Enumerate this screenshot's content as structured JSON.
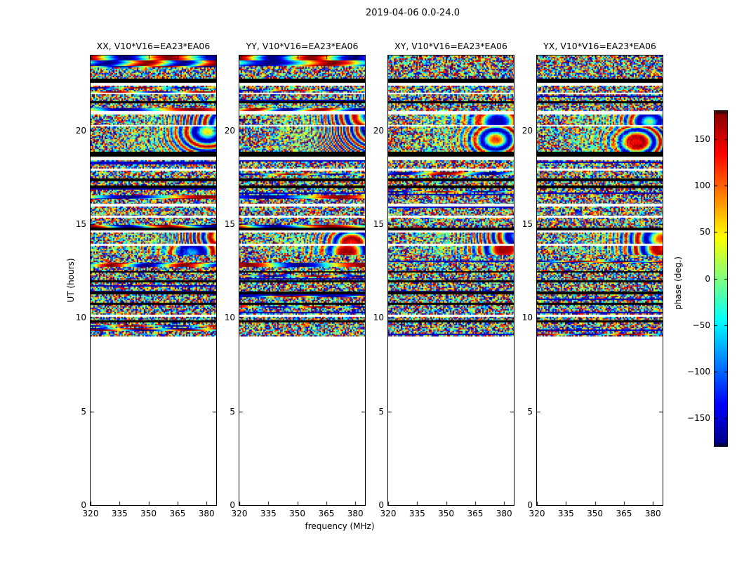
{
  "chart_data": {
    "type": "heatmap",
    "title": "2019-04-06 0.0-24.0",
    "xlabel": "frequency (MHz)",
    "ylabel": "UT (hours)",
    "colorbar_label": "phase (deg.)",
    "colormap": "jet",
    "x_axis": {
      "range_mhz": [
        320,
        385
      ],
      "ticks": [
        320,
        335,
        350,
        365,
        380
      ]
    },
    "y_axis": {
      "range_hours": [
        0,
        24
      ],
      "ticks": [
        0,
        5,
        10,
        15,
        20
      ]
    },
    "colorbar": {
      "range_deg": [
        -180,
        180
      ],
      "ticks": [
        150,
        100,
        50,
        0,
        -50,
        -100,
        -150
      ],
      "tick_labels": [
        "150",
        "100",
        "50",
        "0",
        "−50",
        "−100",
        "−150"
      ]
    },
    "data_present_hours": [
      9.0,
      24.0
    ],
    "panels": [
      {
        "title": "XX, V10*V16=EA23*EA06",
        "correlation": "XX",
        "seed": 101,
        "smooth_rows": true
      },
      {
        "title": "YY, V10*V16=EA23*EA06",
        "correlation": "YY",
        "seed": 202,
        "smooth_rows": true
      },
      {
        "title": "XY, V10*V16=EA23*EA06",
        "correlation": "XY",
        "seed": 303,
        "smooth_rows": false
      },
      {
        "title": "YX, V10*V16=EA23*EA06",
        "correlation": "YX",
        "seed": 404,
        "smooth_rows": false
      }
    ],
    "bands": [
      [
        23.72,
        24.0,
        "smooth"
      ],
      [
        23.45,
        23.72,
        "smooth"
      ],
      [
        22.78,
        23.45,
        "noise"
      ],
      [
        22.55,
        22.78,
        "black"
      ],
      [
        22.38,
        22.55,
        "white"
      ],
      [
        22.0,
        22.38,
        "noise"
      ],
      [
        21.92,
        22.0,
        "white"
      ],
      [
        21.55,
        21.92,
        "noise"
      ],
      [
        21.45,
        21.55,
        "black"
      ],
      [
        21.2,
        21.45,
        "noise"
      ],
      [
        21.05,
        21.2,
        "smooth"
      ],
      [
        20.85,
        21.05,
        "white"
      ],
      [
        20.3,
        20.85,
        "moire"
      ],
      [
        20.2,
        20.3,
        "white"
      ],
      [
        18.85,
        20.2,
        "moire"
      ],
      [
        18.6,
        18.85,
        "black"
      ],
      [
        18.42,
        18.6,
        "white"
      ],
      [
        17.95,
        18.42,
        "noise"
      ],
      [
        17.85,
        17.95,
        "white"
      ],
      [
        17.42,
        17.85,
        "noise"
      ],
      [
        17.3,
        17.42,
        "black"
      ],
      [
        17.05,
        17.3,
        "noise"
      ],
      [
        16.92,
        17.05,
        "black"
      ],
      [
        16.55,
        16.92,
        "noise"
      ],
      [
        16.35,
        16.55,
        "smooth"
      ],
      [
        16.1,
        16.35,
        "noise"
      ],
      [
        15.95,
        16.1,
        "white"
      ],
      [
        15.45,
        15.95,
        "noise"
      ],
      [
        15.35,
        15.45,
        "white"
      ],
      [
        14.95,
        15.35,
        "noise"
      ],
      [
        14.8,
        14.95,
        "smooth"
      ],
      [
        14.65,
        14.8,
        "black"
      ],
      [
        14.55,
        14.65,
        "white"
      ],
      [
        13.95,
        14.55,
        "moire"
      ],
      [
        13.85,
        13.95,
        "white"
      ],
      [
        13.35,
        13.85,
        "moire"
      ],
      [
        12.95,
        13.35,
        "noise"
      ],
      [
        12.7,
        12.95,
        "smooth"
      ],
      [
        12.5,
        12.7,
        "noise"
      ],
      [
        12.4,
        12.5,
        "black"
      ],
      [
        12.0,
        12.4,
        "noise"
      ],
      [
        11.9,
        12.0,
        "black"
      ],
      [
        11.4,
        11.9,
        "noise"
      ],
      [
        11.25,
        11.4,
        "black"
      ],
      [
        10.8,
        11.25,
        "noise"
      ],
      [
        10.7,
        10.8,
        "black"
      ],
      [
        10.15,
        10.7,
        "noise"
      ],
      [
        10.05,
        10.15,
        "white"
      ],
      [
        9.85,
        10.05,
        "noise"
      ],
      [
        9.75,
        9.85,
        "black"
      ],
      [
        9.0,
        9.75,
        "noise"
      ]
    ]
  }
}
